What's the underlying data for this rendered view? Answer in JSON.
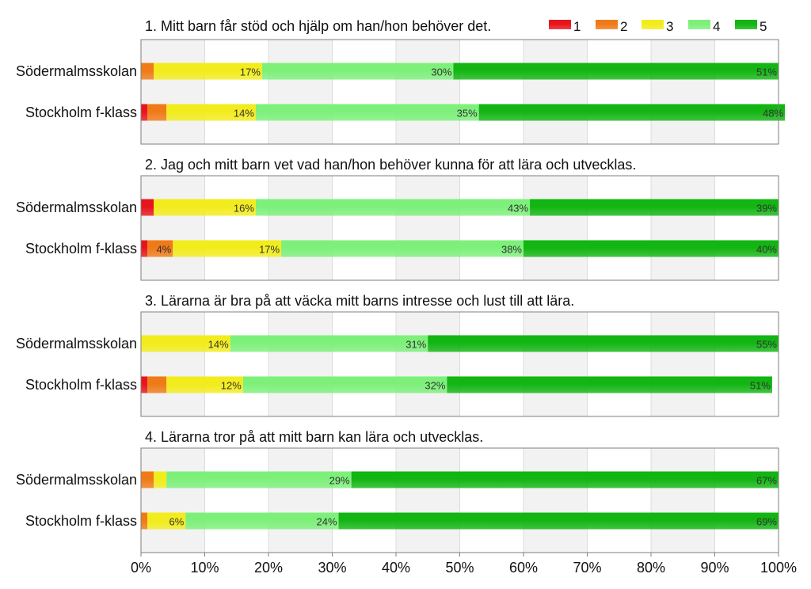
{
  "colors": {
    "1": "#e8141c",
    "2": "#f07a17",
    "3": "#f2ec1c",
    "4": "#7df07a",
    "5": "#12b512",
    "panel_band": "#f2f2f2",
    "frame": "#7f7f7f"
  },
  "chart_data": {
    "type": "bar",
    "orientation": "horizontal",
    "stacked": "percent",
    "legend": {
      "position": "top-right",
      "entries": [
        "1",
        "2",
        "3",
        "4",
        "5"
      ]
    },
    "xlim": [
      0,
      100
    ],
    "xticks": [
      "0%",
      "10%",
      "20%",
      "30%",
      "40%",
      "50%",
      "60%",
      "70%",
      "80%",
      "90%",
      "100%"
    ],
    "grid": "alternating vertical bands",
    "categories": [
      "Södermalmsskolan",
      "Stockholm f-klass"
    ],
    "panels": [
      {
        "title": "1. Mitt barn får stöd och hjälp om han/hon behöver det.",
        "rows": [
          {
            "category": "Södermalmsskolan",
            "values": [
              0,
              2,
              17,
              30,
              51
            ],
            "labels": [
              "",
              "",
              "17%",
              "30%",
              "51%"
            ]
          },
          {
            "category": "Stockholm f-klass",
            "values": [
              1,
              3,
              14,
              35,
              48
            ],
            "labels": [
              "",
              "",
              "14%",
              "35%",
              "48%"
            ]
          }
        ]
      },
      {
        "title": "2. Jag och mitt barn vet vad han/hon behöver kunna för att lära och utvecklas.",
        "rows": [
          {
            "category": "Södermalmsskolan",
            "values": [
              2,
              0,
              16,
              43,
              39
            ],
            "labels": [
              "",
              "",
              "16%",
              "43%",
              "39%"
            ]
          },
          {
            "category": "Stockholm f-klass",
            "values": [
              1,
              4,
              17,
              38,
              40
            ],
            "labels": [
              "",
              "4%",
              "17%",
              "38%",
              "40%"
            ]
          }
        ]
      },
      {
        "title": "3. Lärarna är bra på att väcka mitt barns intresse och lust till att lära.",
        "rows": [
          {
            "category": "Södermalmsskolan",
            "values": [
              0,
              0,
              14,
              31,
              55
            ],
            "labels": [
              "",
              "",
              "14%",
              "31%",
              "55%"
            ]
          },
          {
            "category": "Stockholm f-klass",
            "values": [
              1,
              3,
              12,
              32,
              51
            ],
            "labels": [
              "",
              "",
              "12%",
              "32%",
              "51%"
            ]
          }
        ]
      },
      {
        "title": "4. Lärarna tror på att mitt barn kan lära och utvecklas.",
        "rows": [
          {
            "category": "Södermalmsskolan",
            "values": [
              0,
              2,
              2,
              29,
              67
            ],
            "labels": [
              "",
              "",
              "",
              "29%",
              "67%"
            ]
          },
          {
            "category": "Stockholm f-klass",
            "values": [
              0,
              1,
              6,
              24,
              69
            ],
            "labels": [
              "",
              "",
              "6%",
              "24%",
              "69%"
            ]
          }
        ]
      }
    ]
  }
}
